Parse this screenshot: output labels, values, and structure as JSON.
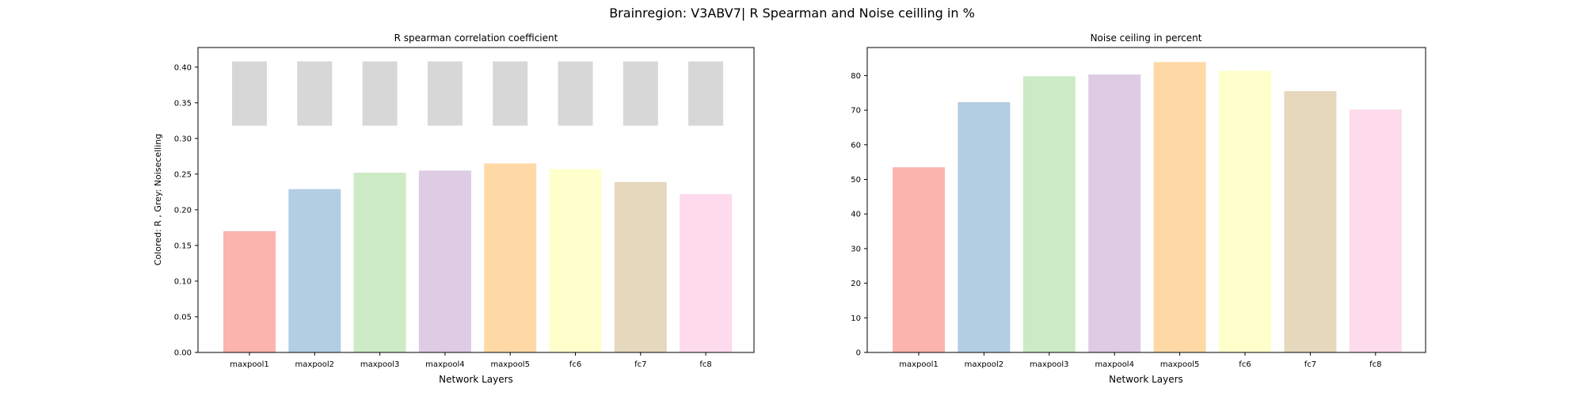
{
  "figure": {
    "suptitle": "Brainregion: V3ABV7| R Spearman and Noise ceilling in %"
  },
  "chart_data": [
    {
      "type": "bar",
      "title": "R spearman correlation coefficient",
      "xlabel": "Network Layers",
      "ylabel": "Colored: R , Grey: Noisecelling",
      "categories": [
        "maxpool1",
        "maxpool2",
        "maxpool3",
        "maxpool4",
        "maxpool5",
        "fc6",
        "fc7",
        "fc8"
      ],
      "series": [
        {
          "values": [
            0.17,
            0.229,
            0.252,
            0.255,
            0.265,
            0.257,
            0.239,
            0.222
          ]
        }
      ],
      "noise_ceiling_range": {
        "lower": [
          0.318,
          0.318,
          0.318,
          0.318,
          0.318,
          0.318,
          0.318,
          0.318
        ],
        "upper": [
          0.408,
          0.408,
          0.408,
          0.408,
          0.408,
          0.408,
          0.408,
          0.408
        ]
      },
      "ylim": [
        0,
        0.4275
      ],
      "yticks": [
        "0.00",
        "0.05",
        "0.10",
        "0.15",
        "0.20",
        "0.25",
        "0.30",
        "0.35",
        "0.40"
      ],
      "bar_colors": [
        "#fbb4ae",
        "#b3cde3",
        "#ccebc5",
        "#decbe4",
        "#fed9a6",
        "#ffffcc",
        "#e5d8bd",
        "#fddaec"
      ],
      "noise_color": "#d7d7d7",
      "grid": false
    },
    {
      "type": "bar",
      "title": "Noise ceiling in percent",
      "xlabel": "Network Layers",
      "ylabel": "",
      "categories": [
        "maxpool1",
        "maxpool2",
        "maxpool3",
        "maxpool4",
        "maxpool5",
        "fc6",
        "fc7",
        "fc8"
      ],
      "series": [
        {
          "values": [
            53.5,
            72.3,
            79.8,
            80.3,
            83.9,
            81.4,
            75.5,
            70.2
          ]
        }
      ],
      "ylim": [
        0,
        88.1
      ],
      "yticks": [
        "0",
        "10",
        "20",
        "30",
        "40",
        "50",
        "60",
        "70",
        "80"
      ],
      "bar_colors": [
        "#fbb4ae",
        "#b3cde3",
        "#ccebc5",
        "#decbe4",
        "#fed9a6",
        "#ffffcc",
        "#e5d8bd",
        "#fddaec"
      ],
      "grid": false
    }
  ]
}
